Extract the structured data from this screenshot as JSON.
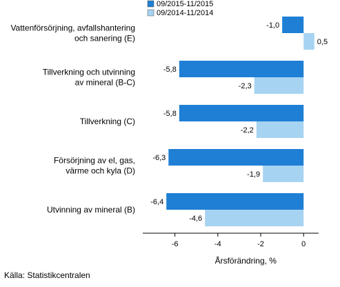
{
  "chart_data": {
    "type": "bar",
    "orientation": "horizontal",
    "categories": [
      [
        "Vattenförsörjning, avfallshantering",
        "och sanering (E)"
      ],
      [
        "Tillverkning och utvinning",
        "av mineral (B-C)"
      ],
      [
        "Tillverkning (C)"
      ],
      [
        "Försörjning av el, gas,",
        "värme och kyla (D)"
      ],
      [
        "Utvinning av mineral (B)"
      ]
    ],
    "series": [
      {
        "name": "09/2015-11/2015",
        "color": "#1f7fd4",
        "values": [
          -1.0,
          -5.8,
          -5.8,
          -6.3,
          -6.4
        ],
        "labels": [
          "-1,0",
          "-5,8",
          "-5,8",
          "-6,3",
          "-6,4"
        ]
      },
      {
        "name": "09/2014-11/2014",
        "color": "#a7d3f2",
        "values": [
          0.5,
          -2.3,
          -2.2,
          -1.9,
          -4.6
        ],
        "labels": [
          "0,5",
          "-2,3",
          "-2,2",
          "-1,9",
          "-4,6"
        ]
      }
    ],
    "xlabel": "Årsförändring, %",
    "xlim": [
      -7.5,
      0.7
    ],
    "xticks": [
      -6,
      -4,
      -2,
      0
    ],
    "xtick_labels": [
      "-6",
      "-4",
      "-2",
      "0"
    ],
    "grid": false,
    "legend_position": "top"
  },
  "source": "Källa: Statistikcentralen"
}
